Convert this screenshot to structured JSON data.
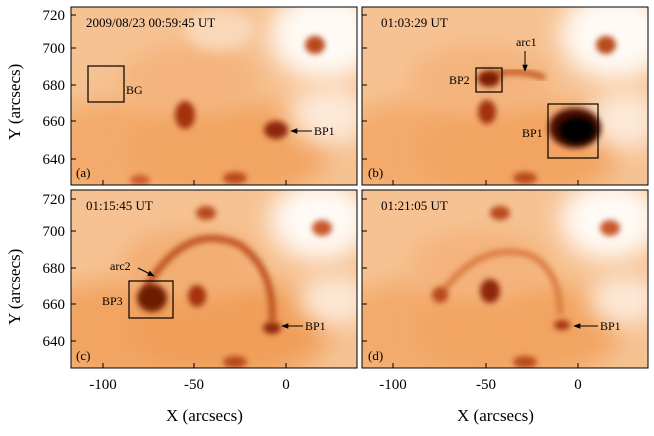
{
  "figure": {
    "x_axis_label": "X (arcsecs)",
    "y_axis_label": "Y (arcsecs)",
    "x_ticks": [
      "-100",
      "-50",
      "0"
    ],
    "y_ticks_top": [
      "720",
      "700",
      "680",
      "660",
      "640"
    ],
    "y_ticks_bottom": [
      "720",
      "700",
      "680",
      "660",
      "640"
    ],
    "colormap": {
      "bright": "#ffffff",
      "mid": "#f2a15c",
      "dark": "#7a1e05",
      "black": "#000000"
    }
  },
  "panels": [
    {
      "tag": "(a)",
      "timestamp": "2009/08/23 00:59:45 UT",
      "labels": {
        "bg": "BG",
        "bp1": "BP1"
      }
    },
    {
      "tag": "(b)",
      "timestamp": "01:03:29 UT",
      "labels": {
        "arc1": "arc1",
        "bp2": "BP2",
        "bp1": "BP1"
      }
    },
    {
      "tag": "(c)",
      "timestamp": "01:15:45 UT",
      "labels": {
        "arc2": "arc2",
        "bp3": "BP3",
        "bp1": "BP1"
      }
    },
    {
      "tag": "(d)",
      "timestamp": "01:21:05 UT",
      "labels": {
        "bp1": "BP1"
      }
    }
  ]
}
